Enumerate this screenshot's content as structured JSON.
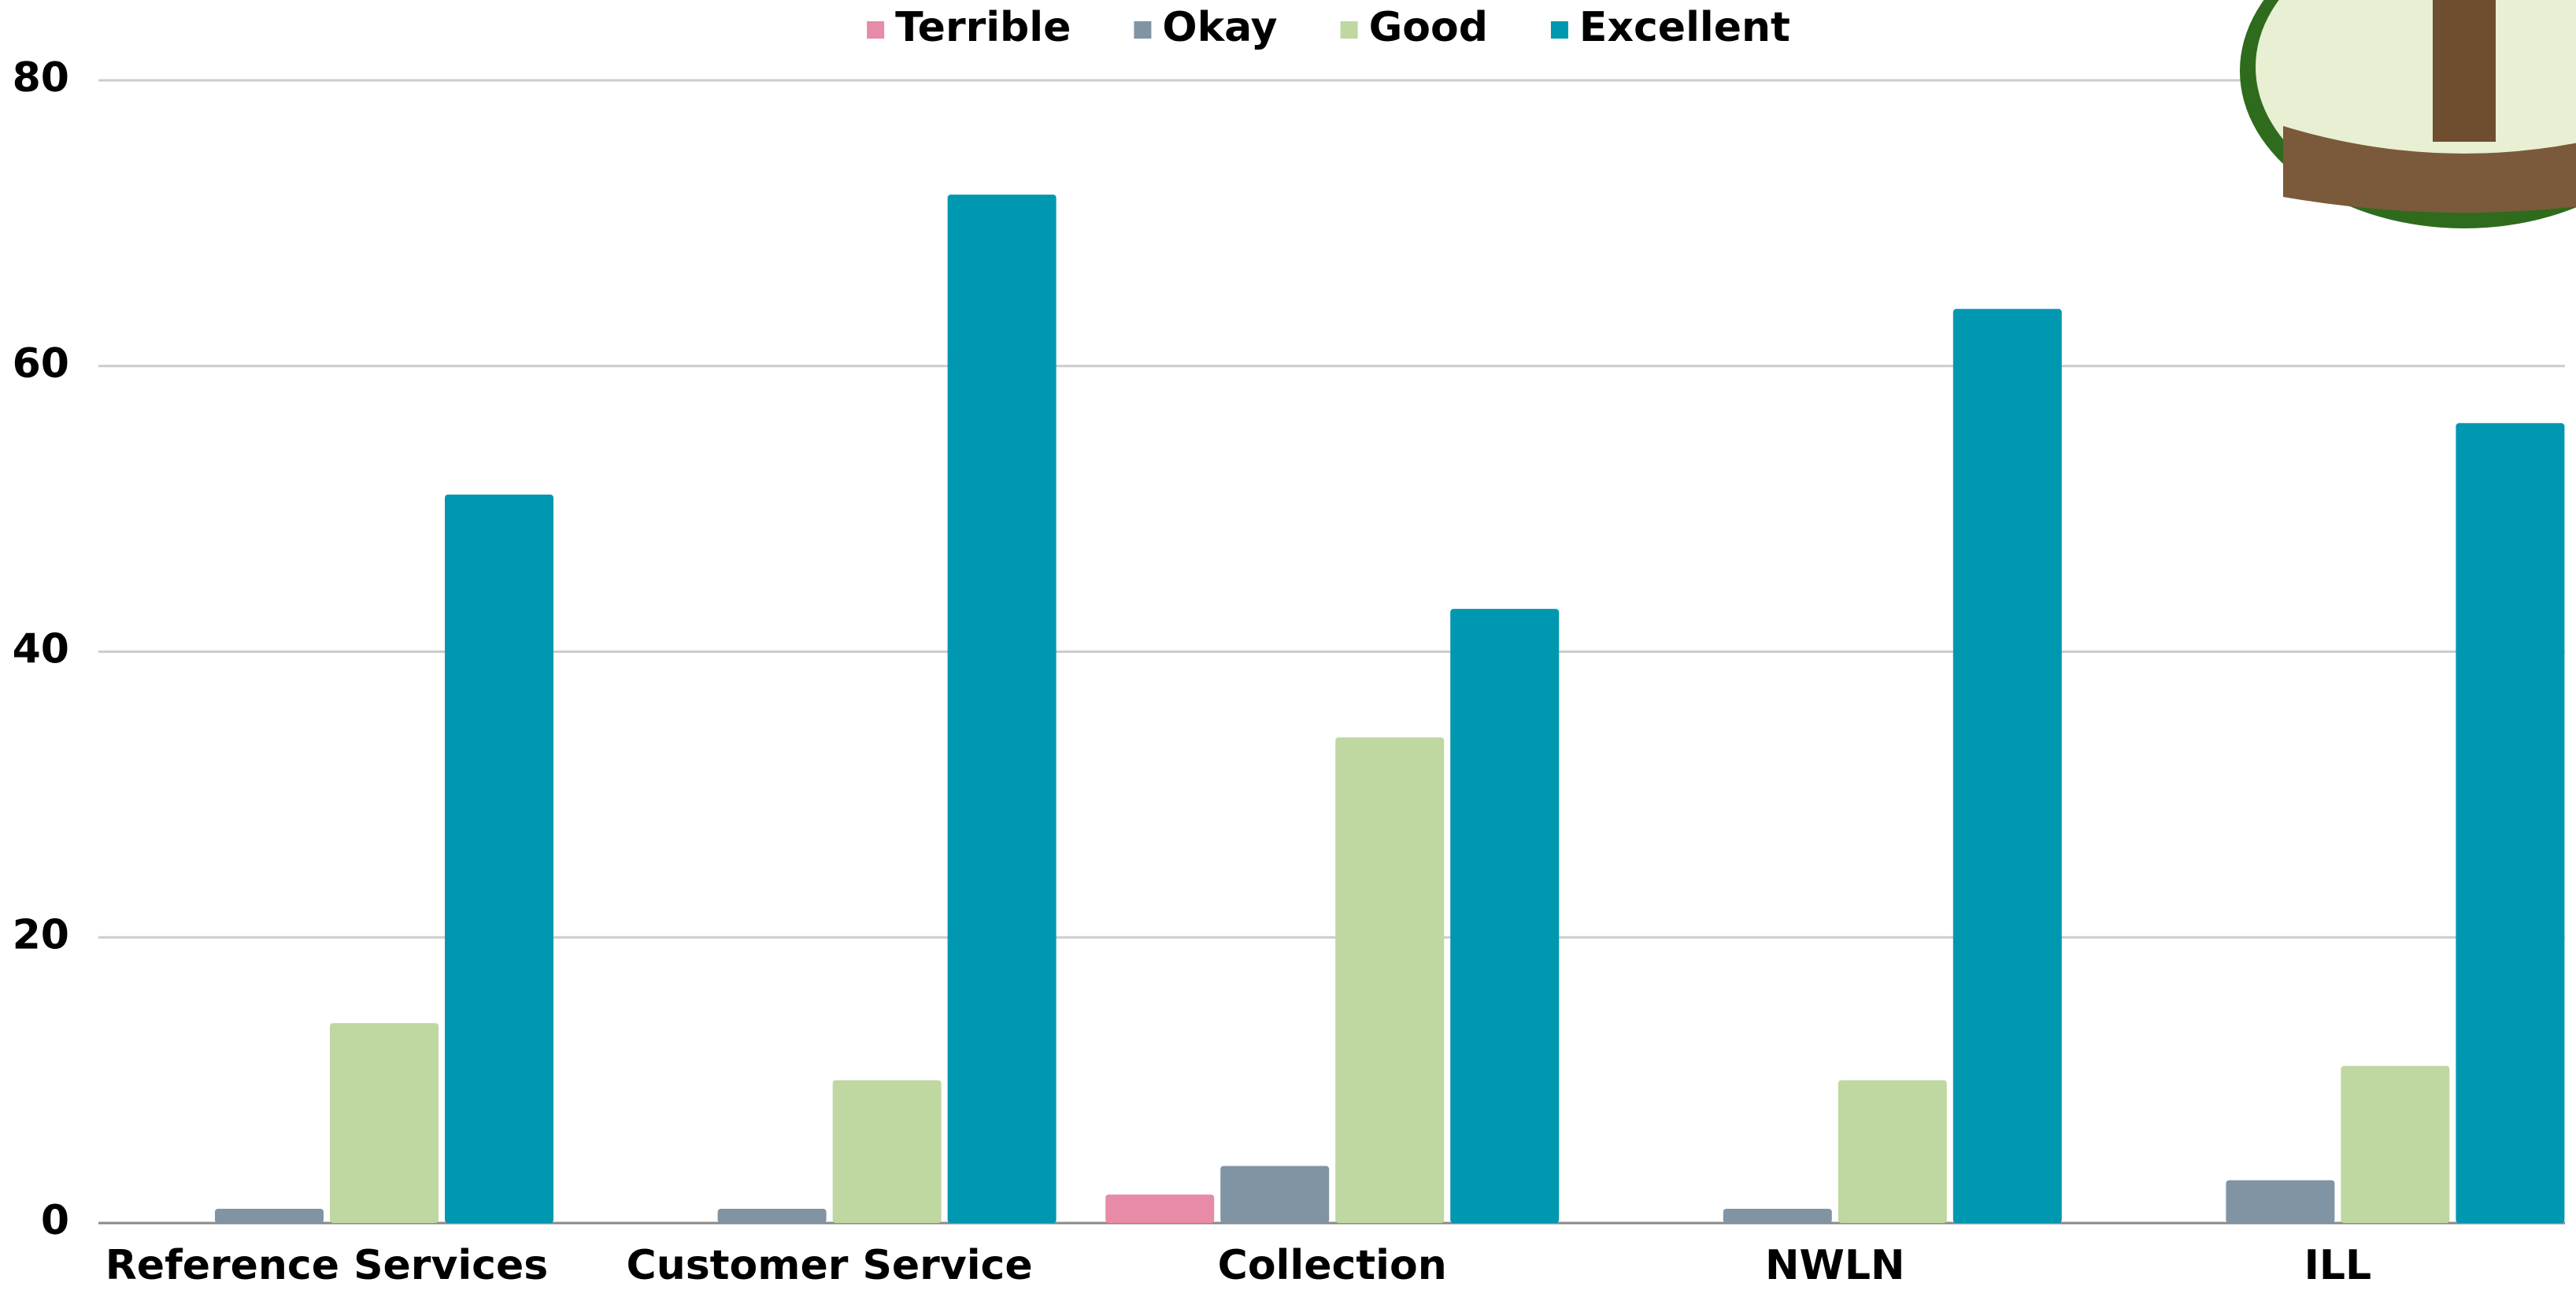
{
  "chart_data": {
    "type": "bar",
    "categories": [
      "Reference Services",
      "Customer Service",
      "Collection",
      "NWLN",
      "ILL"
    ],
    "series": [
      {
        "name": "Terrible",
        "color": "#e78ba6",
        "values": [
          0,
          0,
          2,
          0,
          0
        ]
      },
      {
        "name": "Okay",
        "color": "#8194a4",
        "values": [
          1,
          1,
          4,
          1,
          3
        ]
      },
      {
        "name": "Good",
        "color": "#bfd7a0",
        "values": [
          14,
          10,
          34,
          10,
          11
        ]
      },
      {
        "name": "Excellent",
        "color": "#0098b1",
        "values": [
          51,
          72,
          43,
          64,
          56
        ]
      }
    ],
    "ylim": [
      0,
      80
    ],
    "yticks": [
      0,
      20,
      40,
      60,
      80
    ],
    "grid": true,
    "legend": "top"
  }
}
